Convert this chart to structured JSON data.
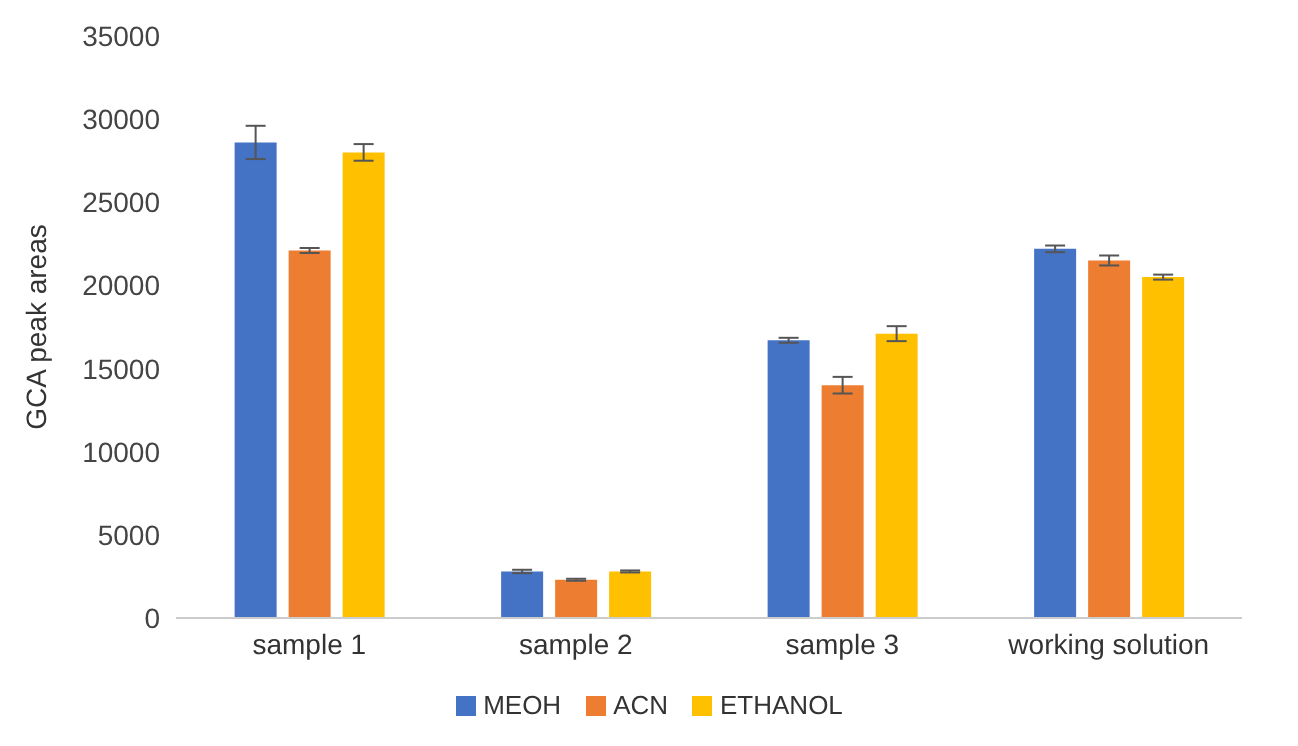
{
  "chart_data": {
    "type": "bar",
    "ylabel": "GCA peak areas",
    "categories": [
      "sample 1",
      "sample 2",
      "sample 3",
      "working solution"
    ],
    "series": [
      {
        "name": "MEOH",
        "color": "#4472c4",
        "values": [
          28600,
          2800,
          16700,
          22200
        ],
        "errors": [
          1000,
          100,
          150,
          200
        ]
      },
      {
        "name": "ACN",
        "color": "#ed7d31",
        "values": [
          22100,
          2300,
          14000,
          21500
        ],
        "errors": [
          150,
          60,
          500,
          300
        ]
      },
      {
        "name": "ETHANOL",
        "color": "#ffc000",
        "values": [
          28000,
          2800,
          17100,
          20500
        ],
        "errors": [
          500,
          60,
          450,
          150
        ]
      }
    ],
    "ylim": [
      0,
      35000
    ],
    "yticks": [
      0,
      5000,
      10000,
      15000,
      20000,
      25000,
      30000,
      35000
    ],
    "grid": false,
    "legend": "bottom"
  }
}
